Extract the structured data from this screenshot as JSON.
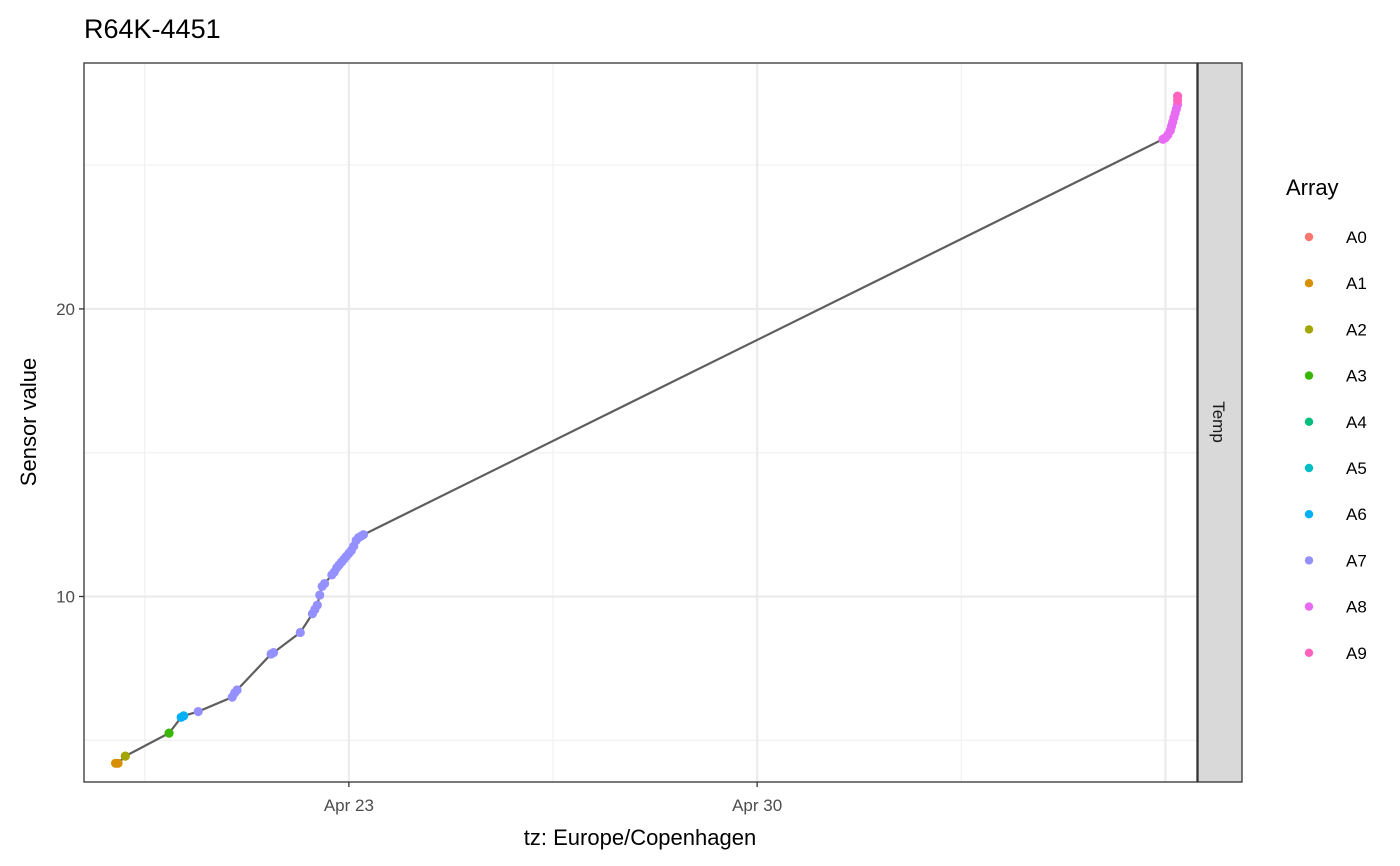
{
  "chart_data": {
    "type": "scatter",
    "title": "R64K-4451",
    "xlabel": "tz: Europe/Copenhagen",
    "ylabel": "Sensor value",
    "facet_label": "Temp",
    "x_ticks": [
      "2021-04-23",
      "2021-04-30"
    ],
    "x_tick_labels": [
      "Apr 23",
      "Apr 30"
    ],
    "y_ticks": [
      10,
      20
    ],
    "y_tick_labels": [
      "10",
      "20"
    ],
    "xlim": [
      "2021-04-18T11:00",
      "2021-05-07T13:00"
    ],
    "ylim": [
      3.55,
      28.55
    ],
    "grid": true,
    "legend": {
      "title": "Array",
      "position": "right",
      "entries": [
        {
          "name": "A0",
          "color": "#F8766D"
        },
        {
          "name": "A1",
          "color": "#D89000"
        },
        {
          "name": "A2",
          "color": "#A3A500"
        },
        {
          "name": "A3",
          "color": "#39B600"
        },
        {
          "name": "A4",
          "color": "#00BF7D"
        },
        {
          "name": "A5",
          "color": "#00BFC4"
        },
        {
          "name": "A6",
          "color": "#00B0F6"
        },
        {
          "name": "A7",
          "color": "#9590FF"
        },
        {
          "name": "A8",
          "color": "#E76BF3"
        },
        {
          "name": "A9",
          "color": "#FF62BC"
        }
      ]
    },
    "line_color": "#5e5e5e",
    "series": [
      {
        "name": "A1",
        "points": [
          {
            "x": "2021-04-19T00:00",
            "y": 4.2
          },
          {
            "x": "2021-04-19T01:00",
            "y": 4.2
          }
        ]
      },
      {
        "name": "A2",
        "points": [
          {
            "x": "2021-04-19T04:00",
            "y": 4.45
          }
        ]
      },
      {
        "name": "A3",
        "points": [
          {
            "x": "2021-04-19T22:00",
            "y": 5.25
          }
        ]
      },
      {
        "name": "A6",
        "points": [
          {
            "x": "2021-04-20T03:00",
            "y": 5.8
          },
          {
            "x": "2021-04-20T04:00",
            "y": 5.85
          }
        ]
      },
      {
        "name": "A7",
        "points": [
          {
            "x": "2021-04-20T10:00",
            "y": 6.0
          },
          {
            "x": "2021-04-21T00:00",
            "y": 6.5
          },
          {
            "x": "2021-04-21T01:00",
            "y": 6.65
          },
          {
            "x": "2021-04-21T02:00",
            "y": 6.75
          },
          {
            "x": "2021-04-21T16:00",
            "y": 8.0
          },
          {
            "x": "2021-04-21T17:00",
            "y": 8.05
          },
          {
            "x": "2021-04-22T04:00",
            "y": 8.75
          },
          {
            "x": "2021-04-22T09:00",
            "y": 9.4
          },
          {
            "x": "2021-04-22T10:00",
            "y": 9.55
          },
          {
            "x": "2021-04-22T11:00",
            "y": 9.7
          },
          {
            "x": "2021-04-22T12:00",
            "y": 10.05
          },
          {
            "x": "2021-04-22T13:00",
            "y": 10.35
          },
          {
            "x": "2021-04-22T14:00",
            "y": 10.45
          },
          {
            "x": "2021-04-22T17:00",
            "y": 10.75
          },
          {
            "x": "2021-04-22T18:00",
            "y": 10.85
          },
          {
            "x": "2021-04-22T19:00",
            "y": 11.0
          },
          {
            "x": "2021-04-22T20:00",
            "y": 11.1
          },
          {
            "x": "2021-04-22T21:00",
            "y": 11.2
          },
          {
            "x": "2021-04-22T22:00",
            "y": 11.3
          },
          {
            "x": "2021-04-22T23:00",
            "y": 11.4
          },
          {
            "x": "2021-04-23T00:00",
            "y": 11.5
          },
          {
            "x": "2021-04-23T01:00",
            "y": 11.6
          },
          {
            "x": "2021-04-23T02:00",
            "y": 11.75
          },
          {
            "x": "2021-04-23T03:00",
            "y": 11.95
          },
          {
            "x": "2021-04-23T04:00",
            "y": 12.05
          },
          {
            "x": "2021-04-23T05:00",
            "y": 12.1
          },
          {
            "x": "2021-04-23T06:00",
            "y": 12.15
          }
        ]
      },
      {
        "name": "A8",
        "points": [
          {
            "x": "2021-05-06T23:00",
            "y": 25.9
          },
          {
            "x": "2021-05-07T00:00",
            "y": 25.95
          },
          {
            "x": "2021-05-07T01:00",
            "y": 26.05
          },
          {
            "x": "2021-05-07T02:00",
            "y": 26.2
          },
          {
            "x": "2021-05-07T02:30",
            "y": 26.35
          },
          {
            "x": "2021-05-07T03:00",
            "y": 26.5
          },
          {
            "x": "2021-05-07T03:30",
            "y": 26.65
          },
          {
            "x": "2021-05-07T04:00",
            "y": 26.8
          },
          {
            "x": "2021-05-07T04:30",
            "y": 26.95
          },
          {
            "x": "2021-05-07T05:00",
            "y": 27.1
          }
        ]
      },
      {
        "name": "A9",
        "points": [
          {
            "x": "2021-05-07T05:00",
            "y": 27.25
          },
          {
            "x": "2021-05-07T05:00",
            "y": 27.4
          }
        ]
      }
    ]
  }
}
